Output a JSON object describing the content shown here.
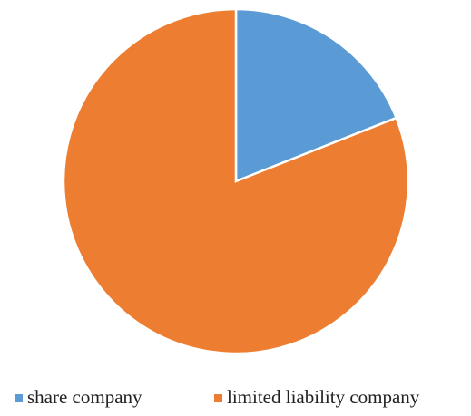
{
  "chart_data": {
    "type": "pie",
    "categories": [
      "share company",
      "limited liability company"
    ],
    "values": [
      19,
      81
    ],
    "colors": [
      "#5b9bd5",
      "#ed7d31"
    ],
    "legend": "bottom"
  }
}
